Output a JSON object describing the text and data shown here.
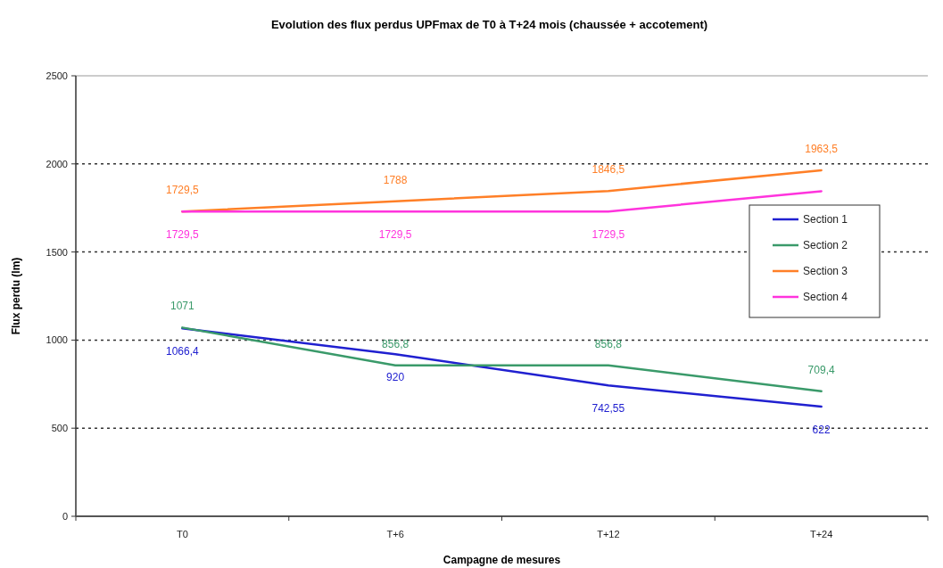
{
  "chart_data": {
    "type": "line",
    "title": "Evolution des flux perdus UPFmax de T0 à T+24 mois (chaussée + accotement)",
    "xlabel": "Campagne de mesures",
    "ylabel": "Flux perdu (lm)",
    "categories": [
      "T0",
      "T+6",
      "T+12",
      "T+24"
    ],
    "series": [
      {
        "name": "Section 1",
        "color": "#2020d0",
        "values": [
          1066.4,
          920,
          742.55,
          622
        ],
        "value_labels": [
          "1066,4",
          "920",
          "742,55",
          "622"
        ]
      },
      {
        "name": "Section 2",
        "color": "#3a9a6a",
        "values": [
          1071,
          856.8,
          856.8,
          709.4
        ],
        "value_labels": [
          "1071",
          "856,8",
          "856,8",
          "709,4"
        ]
      },
      {
        "name": "Section 3",
        "color": "#ff7f27",
        "values": [
          1729.5,
          1788,
          1846.5,
          1963.5
        ],
        "value_labels": [
          "1729,5",
          "1788",
          "1846,5",
          "1963,5"
        ]
      },
      {
        "name": "Section 4",
        "color": "#ff33dd",
        "values": [
          1729.5,
          1729.5,
          1729.5,
          1845
        ],
        "value_labels": [
          "1729,5",
          "1729,5",
          "1729,5",
          null
        ]
      }
    ],
    "ylim": [
      0,
      2500
    ],
    "yticks": [
      0,
      500,
      1000,
      1500,
      2000,
      2500
    ],
    "grid": "y",
    "legend": "right",
    "marker": "none",
    "line_style": "solid"
  }
}
